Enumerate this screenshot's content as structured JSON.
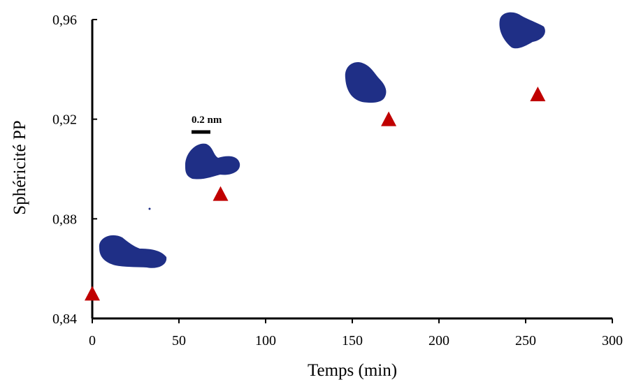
{
  "chart_data": {
    "type": "scatter",
    "x_label": "Temps (min)",
    "y_label": "Sphéricité  PP",
    "annotations": [
      "0.2 nm"
    ],
    "series": [
      {
        "name": "PP",
        "color": "#c00000",
        "x": [
          0,
          74,
          171,
          257
        ],
        "values": [
          0.85,
          0.89,
          0.92,
          0.93
        ]
      }
    ],
    "xlim": [
      0,
      300
    ],
    "xticks": [
      0,
      50,
      100,
      150,
      200,
      250,
      300
    ],
    "ylim": [
      0.84,
      0.96
    ],
    "yticks": [
      {
        "value": 0.84,
        "label": "0,84"
      },
      {
        "value": 0.88,
        "label": "0,88"
      },
      {
        "value": 0.92,
        "label": "0,92"
      },
      {
        "value": 0.96,
        "label": "0,96"
      }
    ]
  }
}
